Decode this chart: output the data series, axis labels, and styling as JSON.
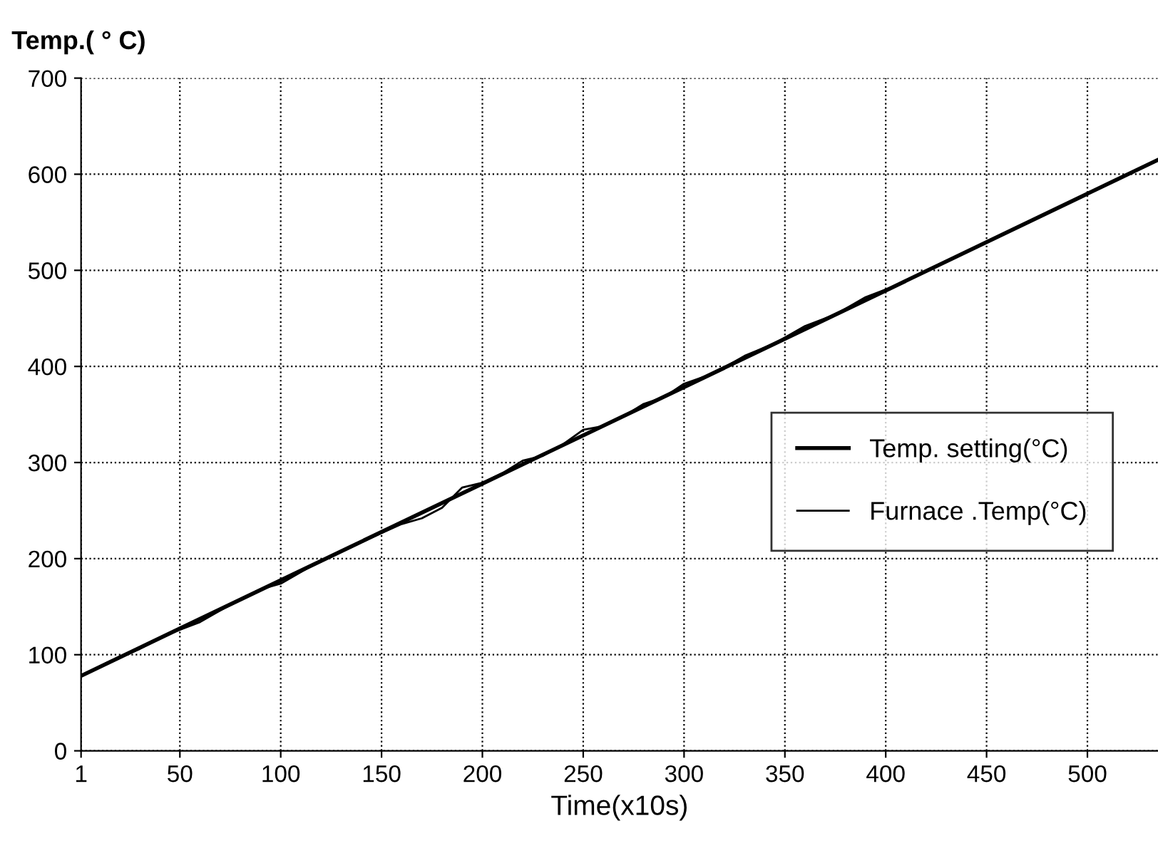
{
  "chart_data": {
    "type": "line",
    "ylabel": "Temp.( ° C)",
    "xlabel": "Time(x10s)",
    "xlim": [
      1,
      535
    ],
    "xticks": [
      1,
      50,
      100,
      150,
      200,
      250,
      300,
      350,
      400,
      450,
      500
    ],
    "ylim": [
      0,
      700
    ],
    "yticks": [
      0,
      100,
      200,
      300,
      400,
      500,
      600,
      700
    ],
    "grid": true,
    "legend": "center right",
    "marker": "none",
    "line_style": "solid",
    "series": [
      {
        "name": "Temp. setting(°C)",
        "color": "#000000",
        "x": [
          1,
          200,
          400,
          535
        ],
        "values": [
          78,
          278,
          479,
          615
        ]
      },
      {
        "name": "Furnace .Temp(°C)",
        "color": "#000000",
        "x": [
          1,
          15,
          30,
          45,
          60,
          75,
          90,
          100,
          115,
          130,
          145,
          160,
          170,
          180,
          190,
          200,
          210,
          220,
          230,
          240,
          250,
          260,
          270,
          280,
          290,
          300,
          315,
          330,
          345,
          360,
          375,
          390,
          405,
          420,
          450,
          480,
          510,
          535
        ],
        "values": [
          78,
          93,
          106,
          122,
          134,
          152,
          168,
          174,
          192,
          207,
          222,
          236,
          242,
          253,
          274,
          279,
          289,
          302,
          307,
          319,
          334,
          338,
          348,
          361,
          368,
          382,
          393,
          411,
          424,
          442,
          454,
          472,
          484,
          500,
          529,
          559,
          590,
          614
        ]
      }
    ]
  }
}
